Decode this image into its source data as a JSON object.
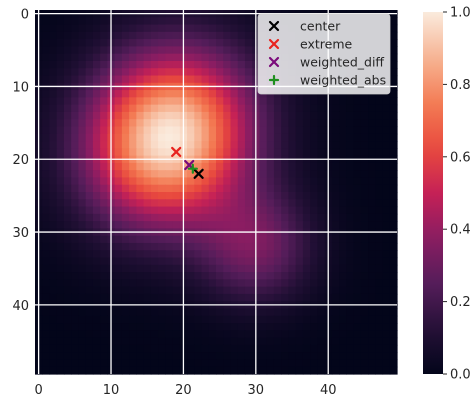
{
  "chart_data": {
    "type": "heatmap",
    "title": "",
    "xlabel": "",
    "ylabel": "",
    "grid": {
      "rows": 50,
      "cols": 50
    },
    "xlim": [
      -0.5,
      49.5
    ],
    "ylim": [
      49.5,
      -0.5
    ],
    "x_ticks": [
      0,
      10,
      20,
      30,
      40
    ],
    "y_ticks": [
      0,
      10,
      20,
      30,
      40
    ],
    "gridlines": true,
    "colorbar": {
      "min": 0.0,
      "max": 1.0,
      "ticks": [
        "0.0",
        "0.2",
        "0.4",
        "0.6",
        "0.8",
        "1.0"
      ],
      "colormap": "rocket"
    },
    "field": {
      "description_units": "row/col index",
      "peak": {
        "x": 18,
        "y": 17,
        "value": 1.0
      },
      "secondary_lobe": {
        "x": 30,
        "y": 32,
        "value": 0.35
      }
    },
    "legend": {
      "position": "upper-right",
      "entries": [
        {
          "label": "center",
          "marker": "x",
          "color": "#000000",
          "x": 22.1,
          "y": 22.0
        },
        {
          "label": "extreme",
          "marker": "x",
          "color": "#e8231f",
          "x": 19.0,
          "y": 19.0
        },
        {
          "label": "weighted_diff",
          "marker": "x",
          "color": "#7b0b7b",
          "x": 20.8,
          "y": 20.8
        },
        {
          "label": "weighted_abs",
          "marker": "+",
          "color": "#1f8f1f",
          "x": 21.3,
          "y": 21.3
        }
      ]
    }
  }
}
